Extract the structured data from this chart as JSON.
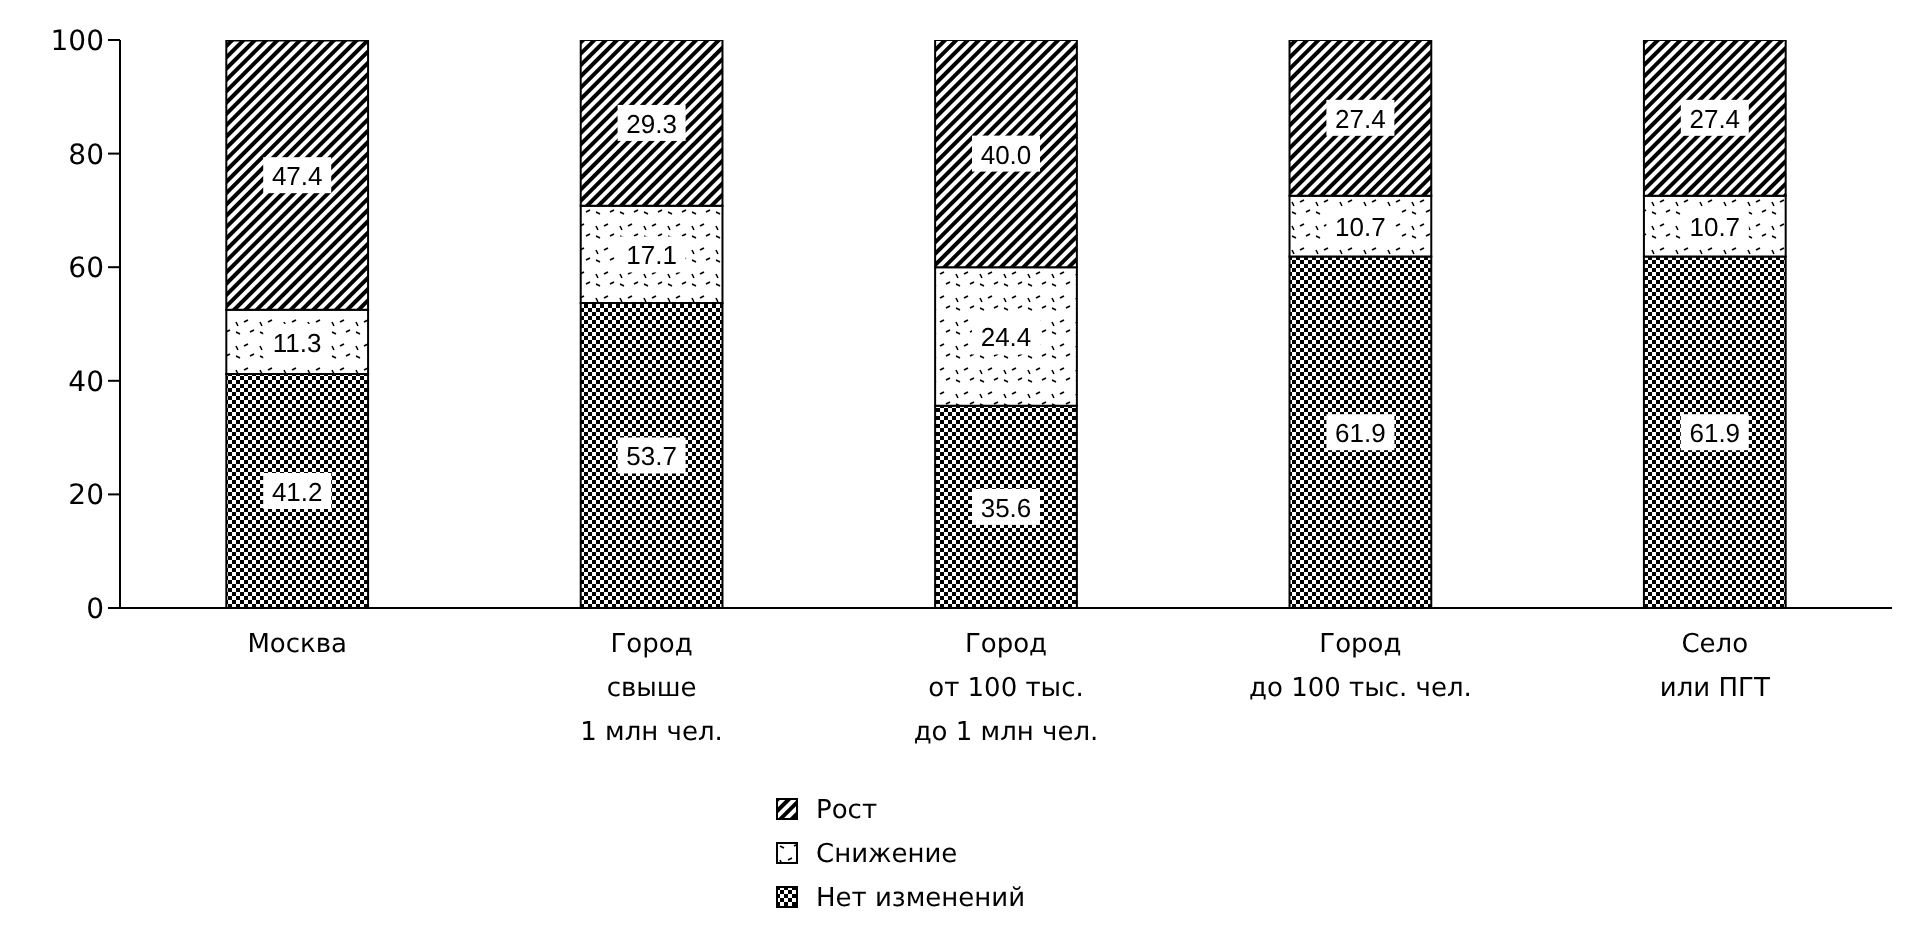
{
  "chart_data": {
    "type": "bar",
    "stacked": true,
    "categories": [
      "Москва",
      "Город\nсвыше\n1 млн чел.",
      "Город\nот 100 тыс.\nдо 1 млн чел.",
      "Город\nдо 100 тыс. чел.",
      "Село\nили ПГТ"
    ],
    "series": [
      {
        "name": "Нет изменений",
        "color": "#000000",
        "values": [
          41.2,
          53.7,
          35.6,
          61.9,
          61.9
        ],
        "value_labels": [
          "41.2",
          "53.7",
          "35.6",
          "61.9",
          "61.9"
        ]
      },
      {
        "name": "Снижение",
        "color": "#000000",
        "values": [
          11.3,
          17.1,
          24.4,
          10.7,
          10.7
        ],
        "value_labels": [
          "11.3",
          "17.1",
          "24.4",
          "10.7",
          "10.7"
        ]
      },
      {
        "name": "Рост",
        "color": "#000000",
        "values": [
          47.4,
          29.3,
          40.0,
          27.4,
          27.4
        ],
        "value_labels": [
          "47.4",
          "29.3",
          "40.0",
          "27.4",
          "27.4"
        ]
      }
    ],
    "ylim": [
      0,
      100
    ],
    "yticks": [
      0,
      20,
      40,
      60,
      80,
      100
    ],
    "grid": false,
    "legend": "bottom"
  }
}
